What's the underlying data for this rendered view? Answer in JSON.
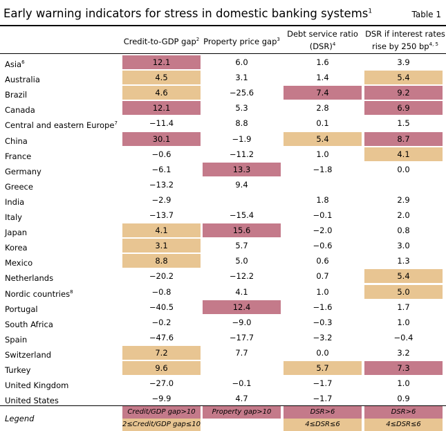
{
  "title": "Early warning indicators for stress in domestic banking systems",
  "title_sup": "1",
  "table_label": "Table 1",
  "columns": [
    {
      "label": "Credit-to-GDP gap",
      "sup": "2"
    },
    {
      "label": "Property price gap",
      "sup": "3"
    },
    {
      "label_line1": "Debt service ratio",
      "label_line2": "(DSR)",
      "sup": "4"
    },
    {
      "label_line1": "DSR if interest rates",
      "label_line2": "rise by 250 bp",
      "sup": "4, 5"
    }
  ],
  "colors": {
    "red": "#c47a8a",
    "tan": "#e8c592"
  },
  "rows": [
    {
      "name": "Asia",
      "sup": "6",
      "cells": [
        {
          "v": "12.1",
          "c": "red"
        },
        {
          "v": "6.0",
          "c": ""
        },
        {
          "v": "1.6",
          "c": ""
        },
        {
          "v": "3.9",
          "c": ""
        }
      ]
    },
    {
      "name": "Australia",
      "sup": "",
      "cells": [
        {
          "v": "4.5",
          "c": "tan"
        },
        {
          "v": "3.1",
          "c": ""
        },
        {
          "v": "1.4",
          "c": ""
        },
        {
          "v": "5.4",
          "c": "tan"
        }
      ]
    },
    {
      "name": "Brazil",
      "sup": "",
      "cells": [
        {
          "v": "4.6",
          "c": "tan"
        },
        {
          "v": "−25.6",
          "c": ""
        },
        {
          "v": "7.4",
          "c": "red"
        },
        {
          "v": "9.2",
          "c": "red"
        }
      ]
    },
    {
      "name": "Canada",
      "sup": "",
      "cells": [
        {
          "v": "12.1",
          "c": "red"
        },
        {
          "v": "5.3",
          "c": ""
        },
        {
          "v": "2.8",
          "c": ""
        },
        {
          "v": "6.9",
          "c": "red"
        }
      ]
    },
    {
      "name": "Central and eastern Europe",
      "sup": "7",
      "cells": [
        {
          "v": "−11.4",
          "c": ""
        },
        {
          "v": "8.8",
          "c": ""
        },
        {
          "v": "0.1",
          "c": ""
        },
        {
          "v": "1.5",
          "c": ""
        }
      ]
    },
    {
      "name": "China",
      "sup": "",
      "cells": [
        {
          "v": "30.1",
          "c": "red"
        },
        {
          "v": "−1.9",
          "c": ""
        },
        {
          "v": "5.4",
          "c": "tan"
        },
        {
          "v": "8.7",
          "c": "red"
        }
      ]
    },
    {
      "name": "France",
      "sup": "",
      "cells": [
        {
          "v": "−0.6",
          "c": ""
        },
        {
          "v": "−11.2",
          "c": ""
        },
        {
          "v": "1.0",
          "c": ""
        },
        {
          "v": "4.1",
          "c": "tan"
        }
      ]
    },
    {
      "name": "Germany",
      "sup": "",
      "cells": [
        {
          "v": "−6.1",
          "c": ""
        },
        {
          "v": "13.3",
          "c": "red"
        },
        {
          "v": "−1.8",
          "c": ""
        },
        {
          "v": "0.0",
          "c": ""
        }
      ]
    },
    {
      "name": "Greece",
      "sup": "",
      "cells": [
        {
          "v": "−13.2",
          "c": ""
        },
        {
          "v": "9.4",
          "c": ""
        },
        {
          "v": "",
          "c": ""
        },
        {
          "v": "",
          "c": ""
        }
      ]
    },
    {
      "name": "India",
      "sup": "",
      "cells": [
        {
          "v": "−2.9",
          "c": ""
        },
        {
          "v": "",
          "c": ""
        },
        {
          "v": "1.8",
          "c": ""
        },
        {
          "v": "2.9",
          "c": ""
        }
      ]
    },
    {
      "name": "Italy",
      "sup": "",
      "cells": [
        {
          "v": "−13.7",
          "c": ""
        },
        {
          "v": "−15.4",
          "c": ""
        },
        {
          "v": "−0.1",
          "c": ""
        },
        {
          "v": "2.0",
          "c": ""
        }
      ]
    },
    {
      "name": "Japan",
      "sup": "",
      "cells": [
        {
          "v": "4.1",
          "c": "tan"
        },
        {
          "v": "15.6",
          "c": "red"
        },
        {
          "v": "−2.0",
          "c": ""
        },
        {
          "v": "0.8",
          "c": ""
        }
      ]
    },
    {
      "name": "Korea",
      "sup": "",
      "cells": [
        {
          "v": "3.1",
          "c": "tan"
        },
        {
          "v": "5.7",
          "c": ""
        },
        {
          "v": "−0.6",
          "c": ""
        },
        {
          "v": "3.0",
          "c": ""
        }
      ]
    },
    {
      "name": "Mexico",
      "sup": "",
      "cells": [
        {
          "v": "8.8",
          "c": "tan"
        },
        {
          "v": "5.0",
          "c": ""
        },
        {
          "v": "0.6",
          "c": ""
        },
        {
          "v": "1.3",
          "c": ""
        }
      ]
    },
    {
      "name": "Netherlands",
      "sup": "",
      "cells": [
        {
          "v": "−20.2",
          "c": ""
        },
        {
          "v": "−12.2",
          "c": ""
        },
        {
          "v": "0.7",
          "c": ""
        },
        {
          "v": "5.4",
          "c": "tan"
        }
      ]
    },
    {
      "name": "Nordic countries",
      "sup": "8",
      "cells": [
        {
          "v": "−0.8",
          "c": ""
        },
        {
          "v": "4.1",
          "c": ""
        },
        {
          "v": "1.0",
          "c": ""
        },
        {
          "v": "5.0",
          "c": "tan"
        }
      ]
    },
    {
      "name": "Portugal",
      "sup": "",
      "cells": [
        {
          "v": "−40.5",
          "c": ""
        },
        {
          "v": "12.4",
          "c": "red"
        },
        {
          "v": "−1.6",
          "c": ""
        },
        {
          "v": "1.7",
          "c": ""
        }
      ]
    },
    {
      "name": "South Africa",
      "sup": "",
      "cells": [
        {
          "v": "−0.2",
          "c": ""
        },
        {
          "v": "−9.0",
          "c": ""
        },
        {
          "v": "−0.3",
          "c": ""
        },
        {
          "v": "1.0",
          "c": ""
        }
      ]
    },
    {
      "name": "Spain",
      "sup": "",
      "cells": [
        {
          "v": "−47.6",
          "c": ""
        },
        {
          "v": "−17.7",
          "c": ""
        },
        {
          "v": "−3.2",
          "c": ""
        },
        {
          "v": "−0.4",
          "c": ""
        }
      ]
    },
    {
      "name": "Switzerland",
      "sup": "",
      "cells": [
        {
          "v": "7.2",
          "c": "tan"
        },
        {
          "v": "7.7",
          "c": ""
        },
        {
          "v": "0.0",
          "c": ""
        },
        {
          "v": "3.2",
          "c": ""
        }
      ]
    },
    {
      "name": "Turkey",
      "sup": "",
      "cells": [
        {
          "v": "9.6",
          "c": "tan"
        },
        {
          "v": "",
          "c": ""
        },
        {
          "v": "5.7",
          "c": "tan"
        },
        {
          "v": "7.3",
          "c": "red"
        }
      ]
    },
    {
      "name": "United Kingdom",
      "sup": "",
      "cells": [
        {
          "v": "−27.0",
          "c": ""
        },
        {
          "v": "−0.1",
          "c": ""
        },
        {
          "v": "−1.7",
          "c": ""
        },
        {
          "v": "1.0",
          "c": ""
        }
      ]
    },
    {
      "name": "United States",
      "sup": "",
      "cells": [
        {
          "v": "−9.9",
          "c": ""
        },
        {
          "v": "4.7",
          "c": ""
        },
        {
          "v": "−1.7",
          "c": ""
        },
        {
          "v": "0.9",
          "c": ""
        }
      ]
    }
  ],
  "legend": {
    "label": "Legend",
    "credit_red": "Credit/GDP gap>10",
    "credit_tan": "2≤Credit/GDP gap≤10",
    "property_red": "Property gap>10",
    "dsr_red": "DSR>6",
    "dsr_tan": "4≤DSR≤6",
    "dsr250_red": "DSR>6",
    "dsr250_tan": "4≤DSR≤6"
  }
}
